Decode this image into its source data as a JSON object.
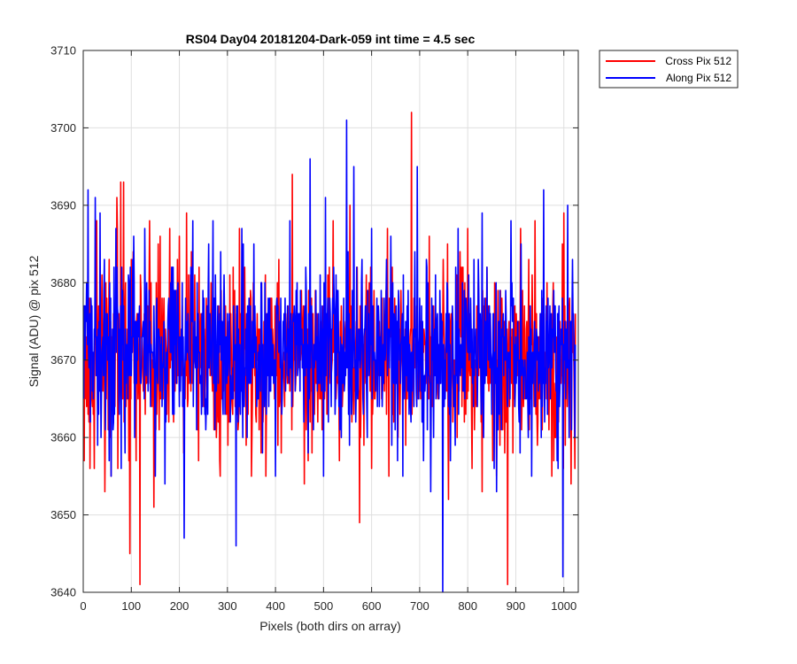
{
  "chart_data": {
    "type": "line",
    "title": "RS04 Day04 20181204-Dark-059 int time = 4.5 sec",
    "xlabel": "Pixels (both dirs on array)",
    "ylabel": "Signal (ADU) @ pix 512",
    "xlim": [
      0,
      1030
    ],
    "ylim": [
      3640,
      3710
    ],
    "xticks": [
      0,
      100,
      200,
      300,
      400,
      500,
      600,
      700,
      800,
      900,
      1000
    ],
    "yticks": [
      3640,
      3650,
      3660,
      3670,
      3680,
      3690,
      3700,
      3710
    ],
    "grid": true,
    "legend_position": "outside-top-right",
    "x_start": 1,
    "x_step": 1,
    "series": [
      {
        "name": "Cross Pix 512",
        "color": "#ff0000",
        "n_points": 1024,
        "mean": 3670.5,
        "std": 5.6,
        "min_clip": 3641,
        "max_clip": 3702,
        "seed": 20181204,
        "spikes": [
          {
            "x": 2,
            "y": 3657
          },
          {
            "x": 14,
            "y": 3656
          },
          {
            "x": 28,
            "y": 3688
          },
          {
            "x": 45,
            "y": 3653
          },
          {
            "x": 58,
            "y": 3655
          },
          {
            "x": 70,
            "y": 3691
          },
          {
            "x": 78,
            "y": 3693
          },
          {
            "x": 84,
            "y": 3693
          },
          {
            "x": 97,
            "y": 3645
          },
          {
            "x": 110,
            "y": 3657
          },
          {
            "x": 118,
            "y": 3641
          },
          {
            "x": 138,
            "y": 3688
          },
          {
            "x": 147,
            "y": 3651
          },
          {
            "x": 160,
            "y": 3686
          },
          {
            "x": 180,
            "y": 3687
          },
          {
            "x": 200,
            "y": 3686
          },
          {
            "x": 215,
            "y": 3689
          },
          {
            "x": 240,
            "y": 3657
          },
          {
            "x": 285,
            "y": 3655
          },
          {
            "x": 325,
            "y": 3687
          },
          {
            "x": 350,
            "y": 3655
          },
          {
            "x": 380,
            "y": 3655
          },
          {
            "x": 435,
            "y": 3694
          },
          {
            "x": 460,
            "y": 3654
          },
          {
            "x": 520,
            "y": 3688
          },
          {
            "x": 555,
            "y": 3690
          },
          {
            "x": 575,
            "y": 3649
          },
          {
            "x": 600,
            "y": 3656
          },
          {
            "x": 655,
            "y": 3660
          },
          {
            "x": 683,
            "y": 3702
          },
          {
            "x": 720,
            "y": 3686
          },
          {
            "x": 760,
            "y": 3652
          },
          {
            "x": 800,
            "y": 3687
          },
          {
            "x": 830,
            "y": 3653
          },
          {
            "x": 860,
            "y": 3655
          },
          {
            "x": 883,
            "y": 3641
          },
          {
            "x": 910,
            "y": 3687
          },
          {
            "x": 940,
            "y": 3688
          },
          {
            "x": 975,
            "y": 3655
          },
          {
            "x": 1000,
            "y": 3689
          },
          {
            "x": 1015,
            "y": 3654
          }
        ]
      },
      {
        "name": "Along Pix 512",
        "color": "#0000ff",
        "n_points": 1024,
        "mean": 3671.0,
        "std": 5.4,
        "min_clip": 3640,
        "max_clip": 3701,
        "seed": 59,
        "spikes": [
          {
            "x": 3,
            "y": 3677
          },
          {
            "x": 25,
            "y": 3691
          },
          {
            "x": 35,
            "y": 3689
          },
          {
            "x": 58,
            "y": 3655
          },
          {
            "x": 70,
            "y": 3682
          },
          {
            "x": 105,
            "y": 3686
          },
          {
            "x": 128,
            "y": 3687
          },
          {
            "x": 150,
            "y": 3655
          },
          {
            "x": 170,
            "y": 3654
          },
          {
            "x": 210,
            "y": 3647
          },
          {
            "x": 228,
            "y": 3688
          },
          {
            "x": 270,
            "y": 3688
          },
          {
            "x": 318,
            "y": 3646
          },
          {
            "x": 330,
            "y": 3687
          },
          {
            "x": 355,
            "y": 3685
          },
          {
            "x": 400,
            "y": 3655
          },
          {
            "x": 430,
            "y": 3688
          },
          {
            "x": 472,
            "y": 3696
          },
          {
            "x": 500,
            "y": 3655
          },
          {
            "x": 548,
            "y": 3701
          },
          {
            "x": 563,
            "y": 3695
          },
          {
            "x": 600,
            "y": 3687
          },
          {
            "x": 640,
            "y": 3686
          },
          {
            "x": 665,
            "y": 3655
          },
          {
            "x": 695,
            "y": 3695
          },
          {
            "x": 748,
            "y": 3640
          },
          {
            "x": 780,
            "y": 3687
          },
          {
            "x": 830,
            "y": 3689
          },
          {
            "x": 855,
            "y": 3656
          },
          {
            "x": 890,
            "y": 3688
          },
          {
            "x": 933,
            "y": 3655
          },
          {
            "x": 958,
            "y": 3692
          },
          {
            "x": 988,
            "y": 3656
          },
          {
            "x": 998,
            "y": 3642
          },
          {
            "x": 1008,
            "y": 3690
          },
          {
            "x": 1018,
            "y": 3683
          }
        ]
      }
    ]
  },
  "colors": {
    "axis": "#262626",
    "grid": "#dfdfdf",
    "background": "#ffffff"
  }
}
